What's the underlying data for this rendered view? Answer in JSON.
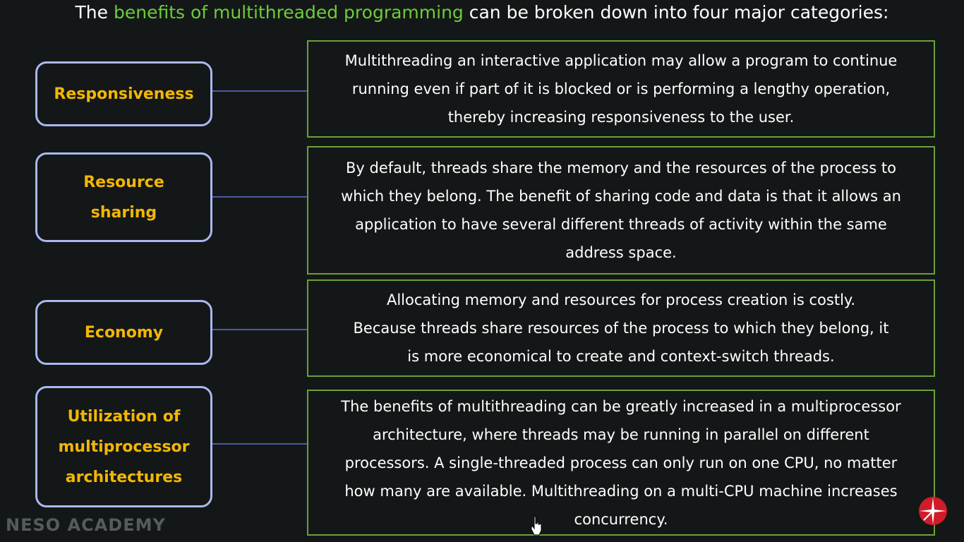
{
  "title": {
    "prefix": "The ",
    "highlight": "benefits of multithreaded programming",
    "suffix": " can be broken down into four major categories:"
  },
  "categories": [
    {
      "label": "Responsiveness",
      "description": "Multithreading an interactive application may allow a program to continue\nrunning even if part of it is blocked or is performing a lengthy operation,\nthereby increasing responsiveness to the user."
    },
    {
      "label": "Resource\nsharing",
      "description": "By default, threads share the memory and the resources of the process to\nwhich they belong. The benefit of sharing code and data is that it allows an\napplication to have several different threads of activity within the same\naddress space."
    },
    {
      "label": "Economy",
      "description": "Allocating memory and resources for process creation is costly.\nBecause threads share resources of the process to which they belong, it\nis more economical to create and context-switch threads."
    },
    {
      "label": "Utilization of\nmultiprocessor\narchitectures",
      "description": "The benefits of multithreading can be greatly increased in a multiprocessor\narchitecture, where threads may be running in parallel on different\nprocessors. A single-threaded process can only run on one CPU, no matter\nhow many are available. Multithreading on a multi-CPU machine increases\nconcurrency."
    }
  ],
  "watermark": "NESO ACADEMY",
  "colors": {
    "background": "#141717",
    "highlight": "#6ccc3c",
    "category_text": "#f2b705",
    "category_border": "#a8b8f0",
    "description_border": "#6aa03a",
    "connector": "#4d5aa0"
  },
  "icons": [
    "compass-icon",
    "mouse-cursor-icon"
  ]
}
